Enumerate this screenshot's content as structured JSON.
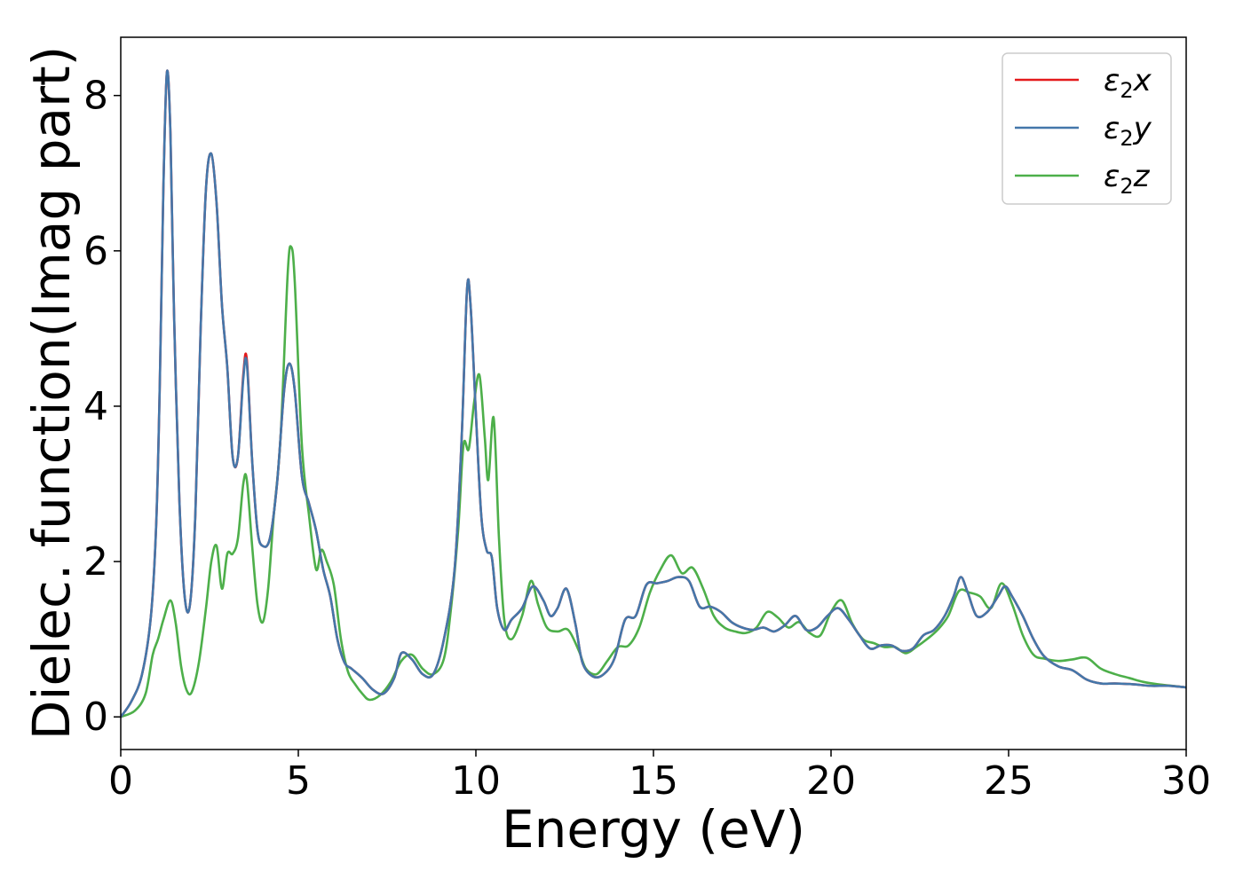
{
  "chart_data": {
    "type": "line",
    "xlabel": "Energy (eV)",
    "ylabel": "Dielec. function(Imag part)",
    "xlim": [
      0,
      30
    ],
    "ylim": [
      -0.42,
      8.75
    ],
    "xticks": [
      0,
      5,
      10,
      15,
      20,
      25,
      30
    ],
    "xtick_labels": [
      "0",
      "5",
      "10",
      "15",
      "20",
      "25",
      "30"
    ],
    "yticks": [
      0,
      2,
      4,
      6,
      8
    ],
    "ytick_labels": [
      "0",
      "2",
      "4",
      "6",
      "8"
    ],
    "grid": false,
    "legend_position": "top-right",
    "series": [
      {
        "name": "ε₂x",
        "legend_base": "ε",
        "legend_sub": "2",
        "legend_suffix": "x",
        "color": "#e41a1c",
        "x": [
          0,
          0.3,
          0.6,
          0.85,
          1.0,
          1.1,
          1.2,
          1.3,
          1.4,
          1.5,
          1.65,
          1.8,
          1.95,
          2.1,
          2.25,
          2.4,
          2.55,
          2.7,
          2.85,
          3.0,
          3.15,
          3.3,
          3.45,
          3.55,
          3.7,
          3.85,
          4.0,
          4.2,
          4.4,
          4.6,
          4.75,
          4.9,
          5.1,
          5.3,
          5.5,
          5.7,
          5.9,
          6.1,
          6.3,
          6.5,
          6.8,
          7.1,
          7.4,
          7.7,
          7.9,
          8.2,
          8.5,
          8.8,
          9.1,
          9.4,
          9.6,
          9.75,
          9.85,
          10.0,
          10.15,
          10.3,
          10.45,
          10.6,
          10.8,
          11.0,
          11.3,
          11.6,
          11.9,
          12.1,
          12.3,
          12.55,
          12.8,
          13.0,
          13.3,
          13.6,
          13.9,
          14.2,
          14.5,
          14.8,
          15.1,
          15.4,
          15.7,
          16.0,
          16.3,
          16.6,
          16.9,
          17.2,
          17.5,
          17.8,
          18.1,
          18.4,
          18.7,
          19.0,
          19.3,
          19.6,
          19.9,
          20.2,
          20.5,
          20.8,
          21.1,
          21.4,
          21.7,
          22.0,
          22.3,
          22.6,
          22.9,
          23.2,
          23.45,
          23.65,
          23.85,
          24.1,
          24.4,
          24.7,
          24.9,
          25.1,
          25.4,
          25.7,
          26.0,
          26.4,
          26.8,
          27.2,
          27.6,
          28.0,
          28.5,
          29.0,
          29.5,
          30.0
        ],
        "y": [
          0,
          0.2,
          0.55,
          1.3,
          2.5,
          4.3,
          6.8,
          8.3,
          7.5,
          5.2,
          2.8,
          1.55,
          1.45,
          2.6,
          5.0,
          6.8,
          7.25,
          6.6,
          5.3,
          4.5,
          3.35,
          3.35,
          4.4,
          4.6,
          3.3,
          2.4,
          2.2,
          2.3,
          3.0,
          4.2,
          4.55,
          4.2,
          3.1,
          2.75,
          2.4,
          1.9,
          1.55,
          1.0,
          0.7,
          0.62,
          0.5,
          0.35,
          0.3,
          0.5,
          0.82,
          0.74,
          0.55,
          0.55,
          1.0,
          1.9,
          3.6,
          5.5,
          5.3,
          3.9,
          2.6,
          2.15,
          2.05,
          1.4,
          1.12,
          1.25,
          1.4,
          1.68,
          1.5,
          1.3,
          1.4,
          1.65,
          1.2,
          0.7,
          0.52,
          0.55,
          0.75,
          1.25,
          1.3,
          1.7,
          1.72,
          1.75,
          1.8,
          1.75,
          1.42,
          1.42,
          1.35,
          1.22,
          1.15,
          1.12,
          1.15,
          1.1,
          1.18,
          1.3,
          1.12,
          1.15,
          1.3,
          1.4,
          1.25,
          1.05,
          0.88,
          0.92,
          0.92,
          0.85,
          0.88,
          1.05,
          1.12,
          1.3,
          1.55,
          1.8,
          1.6,
          1.3,
          1.35,
          1.55,
          1.68,
          1.55,
          1.3,
          1.0,
          0.78,
          0.65,
          0.6,
          0.48,
          0.43,
          0.43,
          0.42,
          0.4,
          0.4,
          0.38
        ]
      },
      {
        "name": "ε₂y",
        "legend_base": "ε",
        "legend_sub": "2",
        "legend_suffix": "y",
        "color": "#4477aa",
        "x": [
          0,
          0.3,
          0.6,
          0.85,
          1.0,
          1.1,
          1.2,
          1.3,
          1.4,
          1.5,
          1.65,
          1.8,
          1.95,
          2.1,
          2.25,
          2.4,
          2.55,
          2.7,
          2.85,
          3.0,
          3.15,
          3.3,
          3.45,
          3.55,
          3.7,
          3.85,
          4.0,
          4.2,
          4.4,
          4.6,
          4.75,
          4.9,
          5.1,
          5.3,
          5.5,
          5.7,
          5.9,
          6.1,
          6.3,
          6.5,
          6.8,
          7.1,
          7.4,
          7.7,
          7.9,
          8.2,
          8.5,
          8.8,
          9.1,
          9.4,
          9.6,
          9.75,
          9.85,
          10.0,
          10.15,
          10.3,
          10.45,
          10.6,
          10.8,
          11.0,
          11.3,
          11.6,
          11.9,
          12.1,
          12.3,
          12.55,
          12.8,
          13.0,
          13.3,
          13.6,
          13.9,
          14.2,
          14.5,
          14.8,
          15.1,
          15.4,
          15.7,
          16.0,
          16.3,
          16.6,
          16.9,
          17.2,
          17.5,
          17.8,
          18.1,
          18.4,
          18.7,
          19.0,
          19.3,
          19.6,
          19.9,
          20.2,
          20.5,
          20.8,
          21.1,
          21.4,
          21.7,
          22.0,
          22.3,
          22.6,
          22.9,
          23.2,
          23.45,
          23.65,
          23.85,
          24.1,
          24.4,
          24.7,
          24.9,
          25.1,
          25.4,
          25.7,
          26.0,
          26.4,
          26.8,
          27.2,
          27.6,
          28.0,
          28.5,
          29.0,
          29.5,
          30.0
        ],
        "y": [
          0,
          0.2,
          0.55,
          1.3,
          2.5,
          4.3,
          6.8,
          8.3,
          7.5,
          5.2,
          2.8,
          1.55,
          1.45,
          2.6,
          5.0,
          6.8,
          7.25,
          6.6,
          5.3,
          4.5,
          3.35,
          3.35,
          4.35,
          4.55,
          3.3,
          2.4,
          2.2,
          2.3,
          3.0,
          4.2,
          4.55,
          4.2,
          3.1,
          2.75,
          2.4,
          1.9,
          1.55,
          1.0,
          0.7,
          0.62,
          0.5,
          0.35,
          0.3,
          0.5,
          0.82,
          0.74,
          0.55,
          0.55,
          1.0,
          1.9,
          3.6,
          5.5,
          5.3,
          3.9,
          2.6,
          2.15,
          2.05,
          1.4,
          1.12,
          1.25,
          1.4,
          1.68,
          1.5,
          1.3,
          1.4,
          1.65,
          1.2,
          0.7,
          0.52,
          0.55,
          0.75,
          1.25,
          1.3,
          1.7,
          1.72,
          1.75,
          1.8,
          1.75,
          1.42,
          1.42,
          1.35,
          1.22,
          1.15,
          1.12,
          1.15,
          1.1,
          1.18,
          1.3,
          1.12,
          1.15,
          1.3,
          1.4,
          1.25,
          1.05,
          0.88,
          0.92,
          0.92,
          0.85,
          0.88,
          1.05,
          1.12,
          1.3,
          1.55,
          1.8,
          1.6,
          1.3,
          1.35,
          1.55,
          1.68,
          1.55,
          1.3,
          1.0,
          0.78,
          0.65,
          0.6,
          0.48,
          0.43,
          0.43,
          0.42,
          0.4,
          0.4,
          0.38
        ]
      },
      {
        "name": "ε₂z",
        "legend_base": "ε",
        "legend_sub": "2",
        "legend_suffix": "z",
        "color": "#4daf4a",
        "x": [
          0,
          0.4,
          0.7,
          0.9,
          1.05,
          1.2,
          1.4,
          1.55,
          1.7,
          1.85,
          2.0,
          2.2,
          2.4,
          2.55,
          2.7,
          2.85,
          3.0,
          3.15,
          3.3,
          3.45,
          3.55,
          3.7,
          3.85,
          4.0,
          4.15,
          4.3,
          4.5,
          4.7,
          4.8,
          4.9,
          5.1,
          5.3,
          5.5,
          5.65,
          5.8,
          6.0,
          6.2,
          6.4,
          6.6,
          6.8,
          7.0,
          7.3,
          7.6,
          7.9,
          8.2,
          8.5,
          8.8,
          9.1,
          9.3,
          9.5,
          9.65,
          9.8,
          9.95,
          10.1,
          10.25,
          10.35,
          10.5,
          10.65,
          10.8,
          11.0,
          11.3,
          11.55,
          11.75,
          12.0,
          12.3,
          12.6,
          12.9,
          13.1,
          13.4,
          13.7,
          14.0,
          14.3,
          14.6,
          14.9,
          15.2,
          15.5,
          15.8,
          16.1,
          16.4,
          16.7,
          17.0,
          17.3,
          17.6,
          17.9,
          18.2,
          18.5,
          18.8,
          19.1,
          19.4,
          19.7,
          20.0,
          20.3,
          20.6,
          20.9,
          21.2,
          21.5,
          21.8,
          22.1,
          22.4,
          22.7,
          23.0,
          23.3,
          23.6,
          23.9,
          24.2,
          24.5,
          24.8,
          25.1,
          25.4,
          25.7,
          26.0,
          26.4,
          26.8,
          27.2,
          27.6,
          28.0,
          28.4,
          28.8,
          29.2,
          29.6,
          30.0
        ],
        "y": [
          0,
          0.08,
          0.3,
          0.8,
          1.0,
          1.25,
          1.5,
          1.2,
          0.65,
          0.35,
          0.32,
          0.7,
          1.4,
          2.0,
          2.2,
          1.65,
          2.1,
          2.1,
          2.3,
          3.0,
          3.05,
          2.2,
          1.45,
          1.22,
          1.65,
          2.55,
          3.6,
          5.7,
          6.05,
          5.6,
          3.5,
          2.6,
          1.9,
          2.15,
          2.0,
          1.7,
          1.0,
          0.58,
          0.42,
          0.3,
          0.22,
          0.28,
          0.45,
          0.72,
          0.8,
          0.62,
          0.55,
          0.75,
          1.4,
          2.4,
          3.5,
          3.45,
          4.05,
          4.4,
          3.6,
          3.05,
          3.85,
          2.3,
          1.25,
          1.0,
          1.3,
          1.75,
          1.45,
          1.15,
          1.1,
          1.12,
          0.85,
          0.62,
          0.55,
          0.72,
          0.9,
          0.92,
          1.15,
          1.6,
          1.9,
          2.08,
          1.85,
          1.92,
          1.65,
          1.3,
          1.15,
          1.1,
          1.08,
          1.15,
          1.35,
          1.28,
          1.15,
          1.22,
          1.08,
          1.05,
          1.35,
          1.5,
          1.2,
          1.0,
          0.95,
          0.9,
          0.9,
          0.82,
          0.9,
          1.0,
          1.12,
          1.3,
          1.62,
          1.6,
          1.55,
          1.4,
          1.72,
          1.45,
          1.05,
          0.8,
          0.75,
          0.72,
          0.74,
          0.76,
          0.62,
          0.55,
          0.5,
          0.45,
          0.42,
          0.4,
          0.38
        ]
      }
    ]
  }
}
